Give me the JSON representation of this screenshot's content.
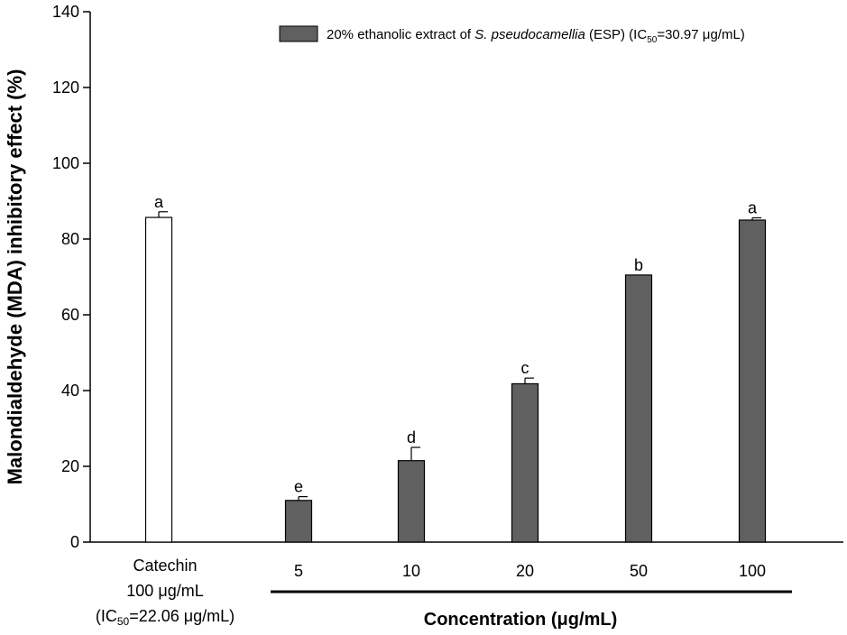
{
  "chart_data": {
    "type": "bar",
    "ylabel": "Malondialdehyde (MDA) inhibitory effect (%)",
    "xlabel": {
      "pre": "Concentration (",
      "mu": "μ",
      "post": "g/mL)"
    },
    "ylim": [
      0,
      140
    ],
    "yticks": [
      0,
      20,
      40,
      60,
      80,
      100,
      120,
      140
    ],
    "colors": {
      "control": "#ffffff",
      "extract": "#606060",
      "stroke": "#000000"
    },
    "legend": {
      "placement": "top-right",
      "pre": "20% ethanolic extract of ",
      "species": "S. pseudocamellia",
      "mid": " (ESP) (IC",
      "sub": "50",
      "mid2": "=30.97 ",
      "mu": "μ",
      "post": "g/mL)"
    },
    "control_label": {
      "line1": "Catechin",
      "line2": {
        "pre": "100 ",
        "mu": "μ",
        "post": "g/mL"
      },
      "line3": {
        "pre": "(IC",
        "sub": "50",
        "mid": "=22.06 ",
        "mu": "μ",
        "post": "g/mL)"
      }
    },
    "bars": [
      {
        "category": "Catechin",
        "value": 85.7,
        "error": 1.5,
        "label": "a",
        "group": "control"
      },
      {
        "category": "5",
        "value": 11.0,
        "error": 1.0,
        "label": "e",
        "group": "extract"
      },
      {
        "category": "10",
        "value": 21.5,
        "error": 3.5,
        "label": "d",
        "group": "extract"
      },
      {
        "category": "20",
        "value": 41.8,
        "error": 1.5,
        "label": "c",
        "group": "extract"
      },
      {
        "category": "50",
        "value": 70.5,
        "error": 0.0,
        "label": "b",
        "group": "extract"
      },
      {
        "category": "100",
        "value": 85.0,
        "error": 0.6,
        "label": "a",
        "group": "extract"
      }
    ]
  }
}
